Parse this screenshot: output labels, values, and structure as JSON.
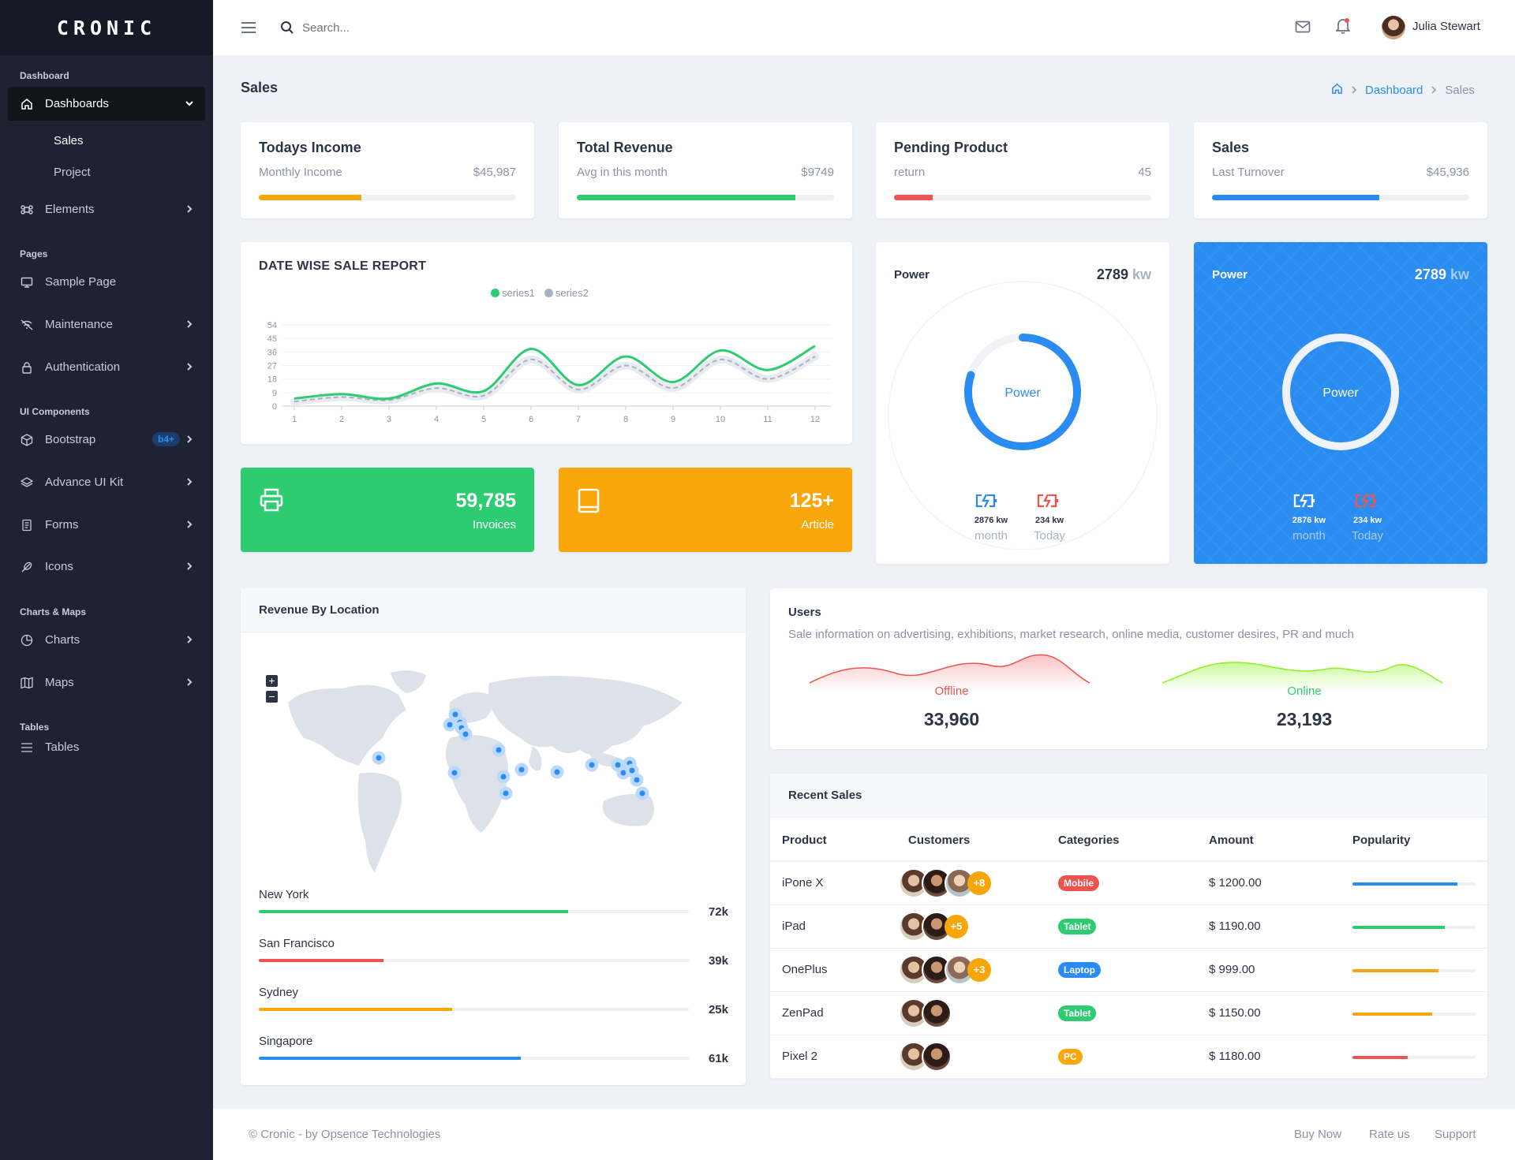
{
  "app": {
    "logo": "CRONIC"
  },
  "sidebar": {
    "sections": [
      "Dashboard",
      "Pages",
      "UI Components",
      "Charts & Maps",
      "Tables"
    ],
    "items": [
      {
        "label": "Dashboards"
      },
      {
        "label": "Elements"
      },
      {
        "label": "Sample Page"
      },
      {
        "label": "Maintenance"
      },
      {
        "label": "Authentication"
      },
      {
        "label": "Bootstrap",
        "badge": "b4+"
      },
      {
        "label": "Advance UI Kit"
      },
      {
        "label": "Forms"
      },
      {
        "label": "Icons"
      },
      {
        "label": "Charts"
      },
      {
        "label": "Maps"
      },
      {
        "label": "Tables"
      }
    ],
    "subitems": [
      "Sales",
      "Project"
    ]
  },
  "topbar": {
    "search_placeholder": "Search...",
    "user_name": "Julia Stewart"
  },
  "page": {
    "title": "Sales",
    "breadcrumb": [
      "Dashboard",
      "Sales"
    ]
  },
  "stats": [
    {
      "title": "Todays Income",
      "sub": "Monthly Income",
      "value": "$45,987",
      "progress": 0.4,
      "color": "#f9a60a"
    },
    {
      "title": "Total Revenue",
      "sub": "Avg in this month",
      "value": "$9749",
      "progress": 0.85,
      "color": "#2ecc71"
    },
    {
      "title": "Pending Product",
      "sub": "return",
      "value": "45",
      "progress": 0.15,
      "color": "#ef5350"
    },
    {
      "title": "Sales",
      "sub": "Last Turnover",
      "value": "$45,936",
      "progress": 0.65,
      "color": "#2a8cf0"
    }
  ],
  "report": {
    "title": "DATE WISE SALE REPORT"
  },
  "chart_data": {
    "type": "line",
    "title": "DATE WISE SALE REPORT",
    "x": [
      1,
      2,
      3,
      4,
      5,
      6,
      7,
      8,
      9,
      10,
      11,
      12
    ],
    "series": [
      {
        "name": "series1",
        "values": [
          5,
          8,
          5,
          15,
          10,
          38,
          14,
          33,
          16,
          37,
          24,
          40
        ],
        "color": "#2ecc71"
      },
      {
        "name": "series2",
        "values": [
          3,
          6,
          4,
          12,
          7,
          31,
          11,
          27,
          12,
          31,
          18,
          33
        ],
        "color": "#a9b1c2"
      }
    ],
    "yticks": [
      0,
      9,
      18,
      27,
      36,
      45,
      54
    ],
    "ylim": [
      0,
      54
    ],
    "legend": "top-center",
    "grid": true
  },
  "tiles": [
    {
      "value": "59,785",
      "label": "Invoices",
      "icon": "printer-icon",
      "color": "#2ecc71"
    },
    {
      "value": "125+",
      "label": "Article",
      "icon": "book-icon",
      "color": "#f9a60a"
    }
  ],
  "power_cards": [
    {
      "title": "Power",
      "value": "2789",
      "unit": "kw",
      "center": "Power",
      "progress": 0.8,
      "m_val": "2876 kw",
      "m_label": "month",
      "t_val": "234 kw",
      "t_label": "Today"
    },
    {
      "title": "Power",
      "value": "2789",
      "unit": "kw",
      "center": "Power",
      "progress": 1.0,
      "m_val": "2876 kw",
      "m_label": "month",
      "t_val": "234 kw",
      "t_label": "Today"
    }
  ],
  "location": {
    "title": "Revenue By Location",
    "zoom_in": "+",
    "zoom_out": "−",
    "cities": [
      {
        "name": "New York",
        "value": "72k",
        "progress": 0.72,
        "color": "#2ecc71"
      },
      {
        "name": "San Francisco",
        "value": "39k",
        "progress": 0.29,
        "color": "#ef5350"
      },
      {
        "name": "Sydney",
        "value": "25k",
        "progress": 0.45,
        "color": "#f9a60a"
      },
      {
        "name": "Singapore",
        "value": "61k",
        "progress": 0.61,
        "color": "#2a8cf0"
      }
    ]
  },
  "users": {
    "title": "Users",
    "desc": "Sale information on advertising, exhibitions, market research, online media, customer desires, PR and much",
    "offline_label": "Offline",
    "offline_value": "33,960",
    "online_label": "Online",
    "online_value": "23,193"
  },
  "recent": {
    "title": "Recent Sales",
    "headers": [
      "Product",
      "Customers",
      "Categories",
      "Amount",
      "Popularity"
    ],
    "rows": [
      {
        "product": "iPone X",
        "more": "+8",
        "avatars": 3,
        "category": "Mobile",
        "cat_color": "#ef5350",
        "amount": "$ 1200.00",
        "pop": 0.85,
        "pop_color": "#2a8cf0"
      },
      {
        "product": "iPad",
        "more": "+5",
        "avatars": 2,
        "category": "Tablet",
        "cat_color": "#2ecc71",
        "amount": "$ 1190.00",
        "pop": 0.75,
        "pop_color": "#2ecc71"
      },
      {
        "product": "OnePlus",
        "more": "+3",
        "avatars": 3,
        "category": "Laptop",
        "cat_color": "#2a8cf0",
        "amount": "$ 999.00",
        "pop": 0.7,
        "pop_color": "#f9a60a"
      },
      {
        "product": "ZenPad",
        "more": "",
        "avatars": 2,
        "category": "Tablet",
        "cat_color": "#2ecc71",
        "amount": "$ 1150.00",
        "pop": 0.65,
        "pop_color": "#f9a60a"
      },
      {
        "product": "Pixel 2",
        "more": "",
        "avatars": 2,
        "category": "PC",
        "cat_color": "#f9a60a",
        "amount": "$ 1180.00",
        "pop": 0.45,
        "pop_color": "#ef5350"
      }
    ]
  },
  "footer": {
    "copyright": "© Cronic - by Opsence Technologies",
    "links": [
      "Buy Now",
      "Rate us",
      "Support"
    ]
  }
}
